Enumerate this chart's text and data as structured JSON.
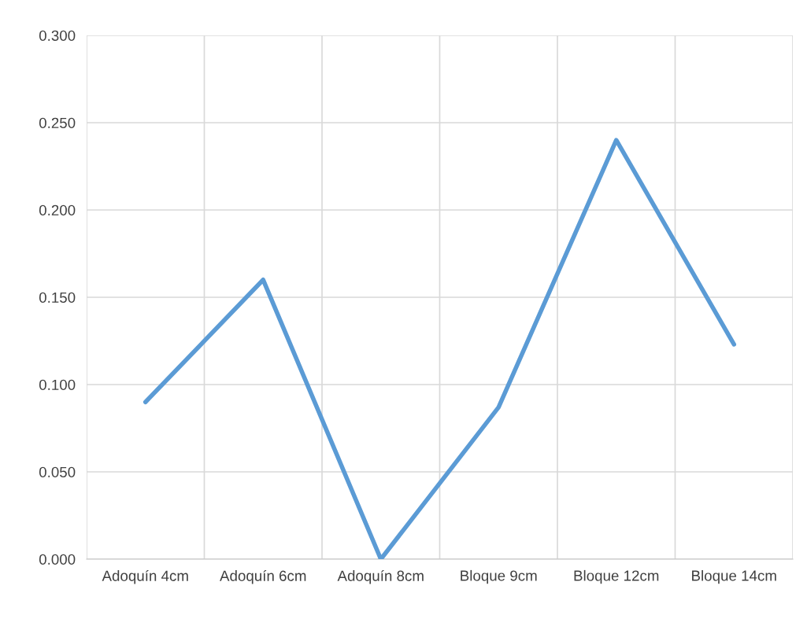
{
  "chart_data": {
    "type": "line",
    "categories": [
      "Adoquín 4cm",
      "Adoquín 6cm",
      "Adoquín 8cm",
      "Bloque 9cm",
      "Bloque 12cm",
      "Bloque 14cm"
    ],
    "series": [
      {
        "color": "#5b9bd5",
        "values": [
          0.09,
          0.16,
          0.0,
          0.087,
          0.24,
          0.123
        ]
      }
    ],
    "ylim": [
      0,
      0.3
    ],
    "yticks": [
      {
        "value": 0,
        "label": "0.000"
      },
      {
        "value": 0.05,
        "label": "0.050"
      },
      {
        "value": 0.1,
        "label": "0.100"
      },
      {
        "value": 0.15,
        "label": "0.150"
      },
      {
        "value": 0.2,
        "label": "0.200"
      },
      {
        "value": 0.25,
        "label": "0.250"
      },
      {
        "value": 0.3,
        "label": "0.300"
      }
    ],
    "grid": true,
    "marker": "none",
    "line_style": "solid"
  }
}
